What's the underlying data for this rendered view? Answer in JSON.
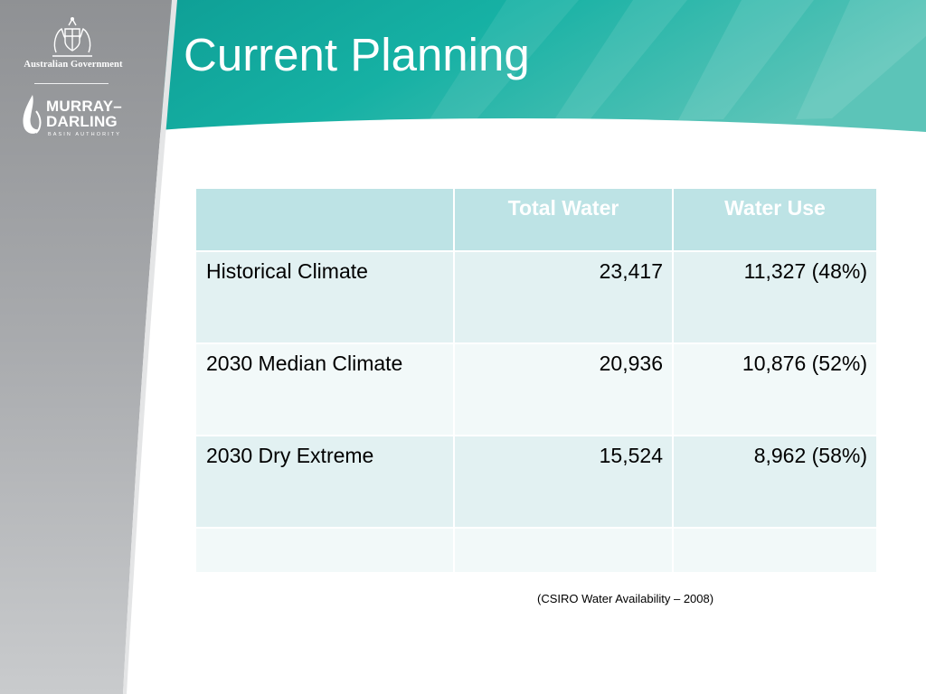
{
  "header": {
    "title": "Current Planning"
  },
  "logos": {
    "government_name": "Australian Government",
    "authority_line1": "MURRAY–",
    "authority_line2": "DARLING",
    "authority_line3": "BASIN AUTHORITY"
  },
  "table": {
    "columns": [
      "",
      "Total Water",
      "Water Use"
    ],
    "rows": [
      {
        "label": "Historical Climate",
        "total_water": "23,417",
        "water_use": "11,327 (48%)"
      },
      {
        "label": "2030 Median Climate",
        "total_water": "20,936",
        "water_use": "10,876 (52%)"
      },
      {
        "label": "2030 Dry Extreme",
        "total_water": "15,524",
        "water_use": "8,962 (58%)"
      },
      {
        "label": "",
        "total_water": "",
        "water_use": ""
      }
    ]
  },
  "source_note": "(CSIRO Water Availability – 2008)",
  "colors": {
    "teal_banner": "#12a89c",
    "grey_sidebar": "#9fa1a4",
    "table_header": "#bde3e5",
    "row_tint_a": "#e2f1f2",
    "row_tint_b": "#f2f9f9"
  }
}
